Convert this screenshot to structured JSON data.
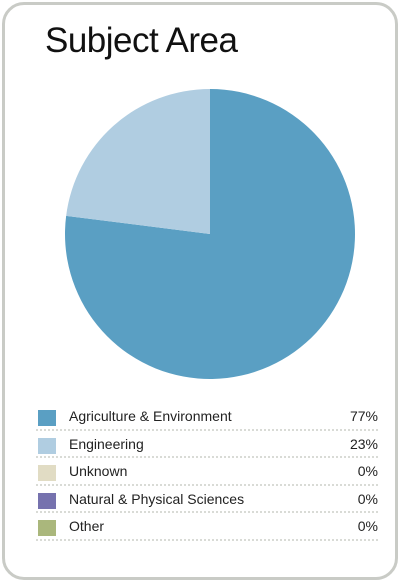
{
  "chart_data": {
    "type": "pie",
    "title": "Subject Area",
    "legend_position": "bottom",
    "slices": [
      {
        "label": "Agriculture & Environment",
        "value": 77,
        "display": "77%",
        "color": "#5a9fc3"
      },
      {
        "label": "Engineering",
        "value": 23,
        "display": "23%",
        "color": "#b0cde1"
      },
      {
        "label": "Unknown",
        "value": 0,
        "display": "0%",
        "color": "#e1dcc4"
      },
      {
        "label": "Natural & Physical Sciences",
        "value": 0,
        "display": "0%",
        "color": "#7672ae"
      },
      {
        "label": "Other",
        "value": 0,
        "display": "0%",
        "color": "#aab77c"
      }
    ]
  }
}
